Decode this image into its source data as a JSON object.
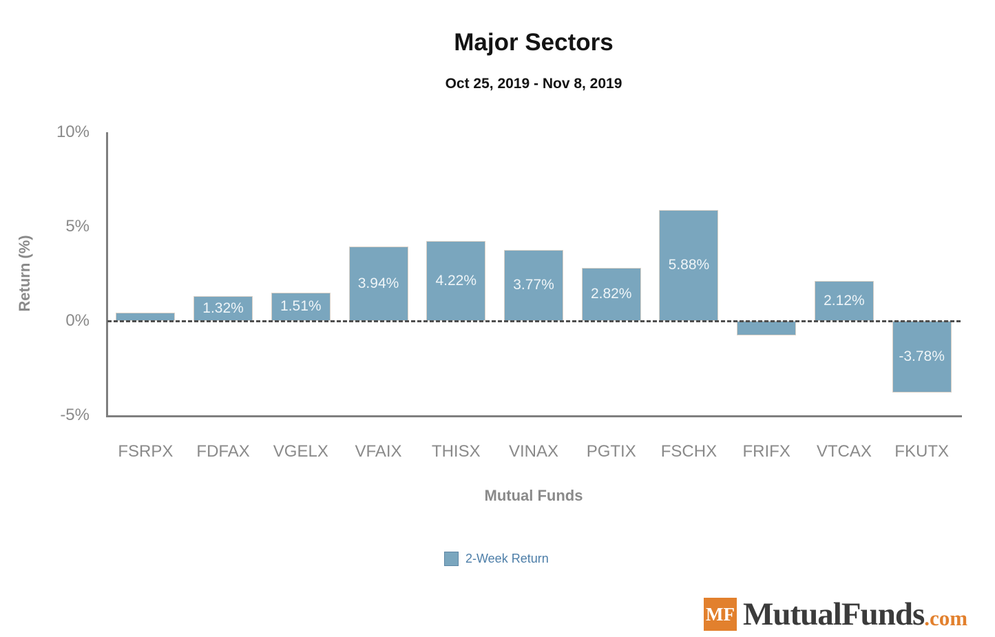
{
  "chart_data": {
    "type": "bar",
    "title": "Major Sectors",
    "subtitle": "Oct 25, 2019 - Nov 8, 2019",
    "xlabel": "Mutual Funds",
    "ylabel": "Return (%)",
    "ylim": [
      -5,
      10
    ],
    "yticks": [
      {
        "value": 10,
        "label": "10%"
      },
      {
        "value": 5,
        "label": "5%"
      },
      {
        "value": 0,
        "label": "0%"
      },
      {
        "value": -5,
        "label": "-5%"
      }
    ],
    "categories": [
      "FSRPX",
      "FDFAX",
      "VGELX",
      "VFAIX",
      "THISX",
      "VINAX",
      "PGTIX",
      "FSCHX",
      "FRIFX",
      "VTCAX",
      "FKUTX"
    ],
    "series": [
      {
        "name": "2-Week Return",
        "values": [
          0.45,
          1.32,
          1.51,
          3.94,
          4.22,
          3.77,
          2.82,
          5.88,
          -0.78,
          2.12,
          -3.78
        ],
        "bar_labels": [
          "",
          "1.32%",
          "1.51%",
          "3.94%",
          "4.22%",
          "3.77%",
          "2.82%",
          "5.88%",
          "",
          "2.12%",
          "-3.78%"
        ]
      }
    ],
    "zero_line": true,
    "grid": false,
    "legend_position": "bottom"
  },
  "legend": {
    "label": "2-Week Return"
  },
  "branding": {
    "badge_text": "MF",
    "brand_name": "MutualFunds",
    "brand_tld": ".com"
  },
  "colors": {
    "bar": "#7AA6BE",
    "bar_label": "#EFF5F8",
    "legend_text": "#4D7EA8",
    "axis_text": "#8A8A8A",
    "axis_line": "#7F7F7F",
    "zero_line": "#4E4E4E",
    "badge_orange": "#E2802D",
    "brand_dark": "#3B3B3B"
  }
}
